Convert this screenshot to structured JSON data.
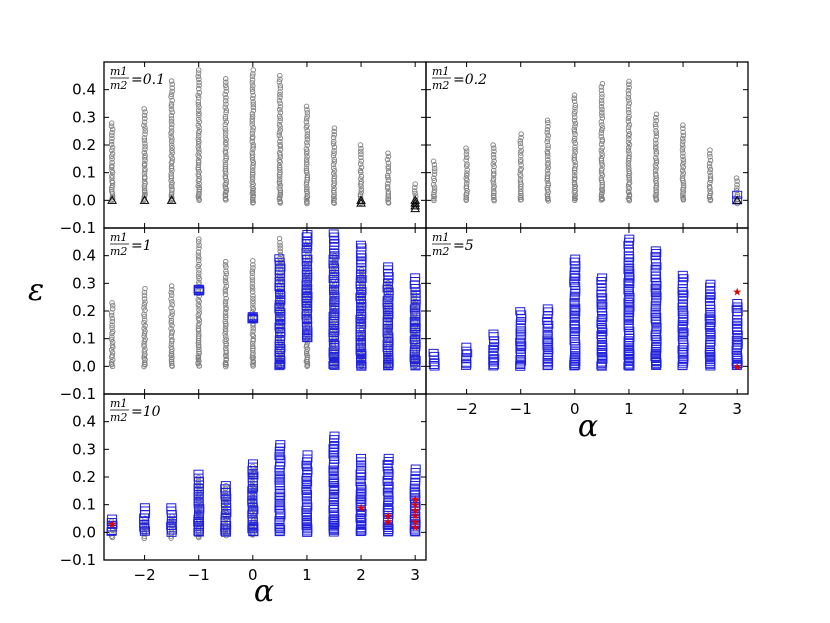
{
  "figure": {
    "ylabel": "ε",
    "xlabel": "α",
    "y_ticks": [
      "−0.1",
      "0.0",
      "0.1",
      "0.2",
      "0.3",
      "0.4"
    ],
    "x_ticks": [
      "−2",
      "−1",
      "0",
      "1",
      "2",
      "3"
    ]
  },
  "legend_symbols": {
    "gray_circle": "#808080",
    "blue_square": "#1f1fe0",
    "red_star": "#e00000",
    "black_triangle": "#000000"
  },
  "chart_data": [
    {
      "type": "scatter",
      "panel": "top-left",
      "annotation": {
        "num": "m1",
        "den": "m2",
        "value": "=0.1"
      },
      "xlim": [
        -2.75,
        3.2
      ],
      "ylim": [
        -0.1,
        0.5
      ],
      "alpha_values": [
        -2.6,
        -2.0,
        -1.5,
        -1.0,
        -0.5,
        0.0,
        0.5,
        1.0,
        1.5,
        2.0,
        2.5,
        3.0
      ],
      "series": [
        {
          "marker": "gray-circle",
          "ranges": [
            [
              -2.6,
              0.0,
              0.28
            ],
            [
              -2.0,
              0.0,
              0.33
            ],
            [
              -1.5,
              0.0,
              0.43
            ],
            [
              -1.0,
              0.0,
              0.47
            ],
            [
              -0.5,
              0.0,
              0.44
            ],
            [
              0.0,
              -0.01,
              0.47
            ],
            [
              0.5,
              -0.01,
              0.45
            ],
            [
              1.0,
              -0.01,
              0.34
            ],
            [
              1.5,
              -0.01,
              0.26
            ],
            [
              2.0,
              -0.01,
              0.2
            ],
            [
              2.5,
              -0.01,
              0.17
            ],
            [
              3.0,
              -0.02,
              0.06
            ]
          ]
        },
        {
          "marker": "black-triangle",
          "points": [
            [
              -2.6,
              0.0
            ],
            [
              -2.0,
              0.0
            ],
            [
              -1.5,
              0.0
            ],
            [
              2.0,
              0.0
            ],
            [
              2.0,
              -0.01
            ],
            [
              3.0,
              0.0
            ],
            [
              3.0,
              -0.01
            ],
            [
              3.0,
              -0.02
            ],
            [
              3.0,
              -0.03
            ]
          ]
        }
      ]
    },
    {
      "type": "scatter",
      "panel": "top-right",
      "annotation": {
        "num": "m1",
        "den": "m2",
        "value": "=0.2"
      },
      "xlim": [
        -2.75,
        3.2
      ],
      "ylim": [
        -0.1,
        0.5
      ],
      "series": [
        {
          "marker": "gray-circle",
          "ranges": [
            [
              -2.6,
              0.0,
              0.14
            ],
            [
              -2.0,
              0.0,
              0.19
            ],
            [
              -1.5,
              0.0,
              0.2
            ],
            [
              -1.0,
              0.0,
              0.24
            ],
            [
              -0.5,
              0.0,
              0.29
            ],
            [
              0.0,
              0.0,
              0.38
            ],
            [
              0.5,
              0.0,
              0.42
            ],
            [
              1.0,
              0.0,
              0.43
            ],
            [
              1.5,
              0.0,
              0.31
            ],
            [
              2.0,
              0.0,
              0.27
            ],
            [
              2.5,
              0.0,
              0.18
            ],
            [
              3.0,
              -0.01,
              0.08
            ]
          ]
        },
        {
          "marker": "blue-square",
          "points": [
            [
              3.0,
              0.0
            ],
            [
              3.0,
              0.02
            ]
          ]
        },
        {
          "marker": "black-triangle",
          "points": [
            [
              3.0,
              0.0
            ]
          ]
        }
      ]
    },
    {
      "type": "scatter",
      "panel": "middle-left",
      "annotation": {
        "num": "m1",
        "den": "m2",
        "value": "=1"
      },
      "xlim": [
        -2.75,
        3.2
      ],
      "ylim": [
        -0.1,
        0.5
      ],
      "series": [
        {
          "marker": "gray-circle",
          "ranges": [
            [
              -2.6,
              0.0,
              0.23
            ],
            [
              -2.0,
              0.0,
              0.28
            ],
            [
              -1.5,
              0.0,
              0.29
            ],
            [
              -1.0,
              0.0,
              0.46
            ],
            [
              -0.5,
              0.0,
              0.38
            ],
            [
              0.0,
              0.0,
              0.38
            ],
            [
              0.5,
              0.0,
              0.46
            ],
            [
              1.0,
              0.0,
              0.45
            ],
            [
              1.5,
              0.0,
              0.4
            ],
            [
              2.0,
              0.0,
              0.35
            ],
            [
              2.5,
              0.0,
              0.3
            ],
            [
              3.0,
              0.0,
              0.26
            ]
          ]
        },
        {
          "marker": "blue-square",
          "ranges": [
            [
              -1.0,
              0.27,
              0.28
            ],
            [
              0.0,
              0.17,
              0.18
            ],
            [
              0.5,
              0.0,
              0.39
            ],
            [
              1.0,
              0.1,
              0.48
            ],
            [
              1.5,
              0.0,
              0.48
            ],
            [
              2.0,
              0.0,
              0.44
            ],
            [
              2.5,
              0.0,
              0.36
            ],
            [
              3.0,
              0.0,
              0.32
            ]
          ]
        }
      ]
    },
    {
      "type": "scatter",
      "panel": "middle-right",
      "annotation": {
        "num": "m1",
        "den": "m2",
        "value": "=5"
      },
      "xlim": [
        -2.75,
        3.2
      ],
      "ylim": [
        -0.1,
        0.5
      ],
      "series": [
        {
          "marker": "blue-square",
          "ranges": [
            [
              -2.6,
              0.0,
              0.05
            ],
            [
              -2.0,
              0.0,
              0.07
            ],
            [
              -1.5,
              0.0,
              0.12
            ],
            [
              -1.0,
              0.0,
              0.2
            ],
            [
              -0.5,
              0.0,
              0.21
            ],
            [
              0.0,
              0.0,
              0.39
            ],
            [
              0.5,
              0.0,
              0.32
            ],
            [
              1.0,
              0.0,
              0.46
            ],
            [
              1.5,
              0.0,
              0.42
            ],
            [
              2.0,
              0.0,
              0.33
            ],
            [
              2.5,
              0.0,
              0.3
            ],
            [
              3.0,
              0.0,
              0.23
            ]
          ]
        },
        {
          "marker": "red-star",
          "points": [
            [
              3.0,
              0.27
            ],
            [
              3.0,
              0.0
            ]
          ]
        }
      ]
    },
    {
      "type": "scatter",
      "panel": "bottom-left",
      "annotation": {
        "num": "m1",
        "den": "m2",
        "value": "=10"
      },
      "xlim": [
        -2.75,
        3.2
      ],
      "ylim": [
        -0.1,
        0.5
      ],
      "series": [
        {
          "marker": "gray-circle",
          "ranges": [
            [
              -2.6,
              -0.02,
              0.04
            ],
            [
              -2.0,
              -0.02,
              0.05
            ],
            [
              -1.5,
              -0.02,
              0.06
            ],
            [
              -1.0,
              -0.02,
              0.2
            ],
            [
              -0.5,
              -0.01,
              0.17
            ],
            [
              0.0,
              -0.01,
              0.24
            ]
          ]
        },
        {
          "marker": "blue-square",
          "ranges": [
            [
              -2.6,
              0.0,
              0.05
            ],
            [
              -2.0,
              0.0,
              0.09
            ],
            [
              -1.5,
              0.0,
              0.09
            ],
            [
              -1.0,
              0.0,
              0.21
            ],
            [
              -0.5,
              0.0,
              0.17
            ],
            [
              0.0,
              0.0,
              0.25
            ],
            [
              0.5,
              0.0,
              0.32
            ],
            [
              1.0,
              0.0,
              0.28
            ],
            [
              1.5,
              0.0,
              0.35
            ],
            [
              2.0,
              0.0,
              0.27
            ],
            [
              2.5,
              0.0,
              0.27
            ],
            [
              3.0,
              0.0,
              0.23
            ]
          ]
        },
        {
          "marker": "red-star",
          "points": [
            [
              -2.6,
              0.03
            ],
            [
              2.0,
              0.09
            ],
            [
              2.5,
              0.06
            ],
            [
              2.5,
              0.04
            ],
            [
              3.0,
              0.12
            ],
            [
              3.0,
              0.1
            ],
            [
              3.0,
              0.08
            ],
            [
              3.0,
              0.06
            ],
            [
              3.0,
              0.04
            ],
            [
              3.0,
              0.02
            ]
          ]
        }
      ]
    }
  ]
}
